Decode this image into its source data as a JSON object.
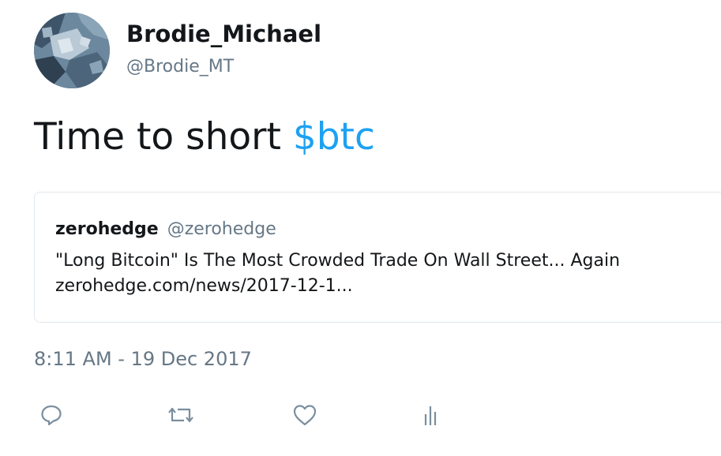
{
  "author": {
    "display_name": "Brodie_Michael",
    "handle": "@Brodie_MT",
    "avatar_icon": "profile-photo"
  },
  "tweet": {
    "text_prefix": "Time to short ",
    "cashtag": "$btc"
  },
  "quoted_tweet": {
    "name": "zerohedge",
    "handle": "@zerohedge",
    "line1": "\"Long Bitcoin\" Is The Most Crowded Trade On Wall Street... Again",
    "line2": "zerohedge.com/news/2017-12-1..."
  },
  "timestamp": "8:11 AM - 19 Dec 2017",
  "actions": [
    {
      "name": "reply",
      "icon": "reply-icon"
    },
    {
      "name": "retweet",
      "icon": "retweet-icon"
    },
    {
      "name": "like",
      "icon": "heart-icon"
    },
    {
      "name": "analytics",
      "icon": "analytics-icon"
    }
  ],
  "colors": {
    "text": "#14171a",
    "secondary": "#657786",
    "link": "#1da1f2",
    "border": "#e1e8ed",
    "icon": "#7a8e9e"
  }
}
